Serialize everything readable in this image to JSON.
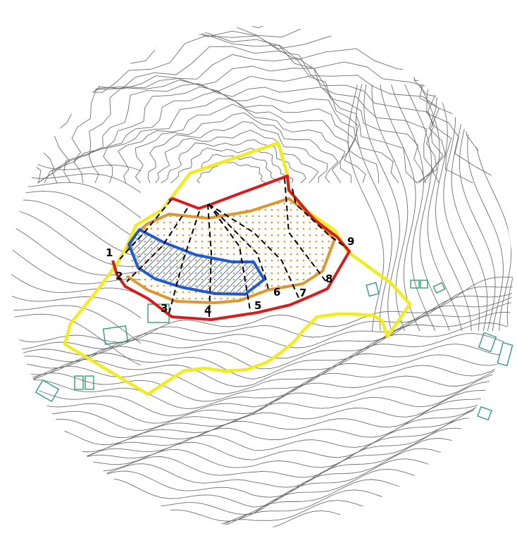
{
  "map": {
    "colors": {
      "contour": "#6e6e6e",
      "boundary_yellow": "#f2ec1a",
      "boundary_red": "#dd1a1a",
      "boundary_orange": "#e0962a",
      "boundary_blue": "#1f5ad6",
      "hatch_blue": "#2a5fc8",
      "dots_orange": "#e0962a",
      "section_lines": "#000000",
      "buildings": "#1f9a6a"
    },
    "section_labels": [
      "1",
      "2",
      "3",
      "4",
      "5",
      "6",
      "7",
      "8",
      "9"
    ]
  }
}
